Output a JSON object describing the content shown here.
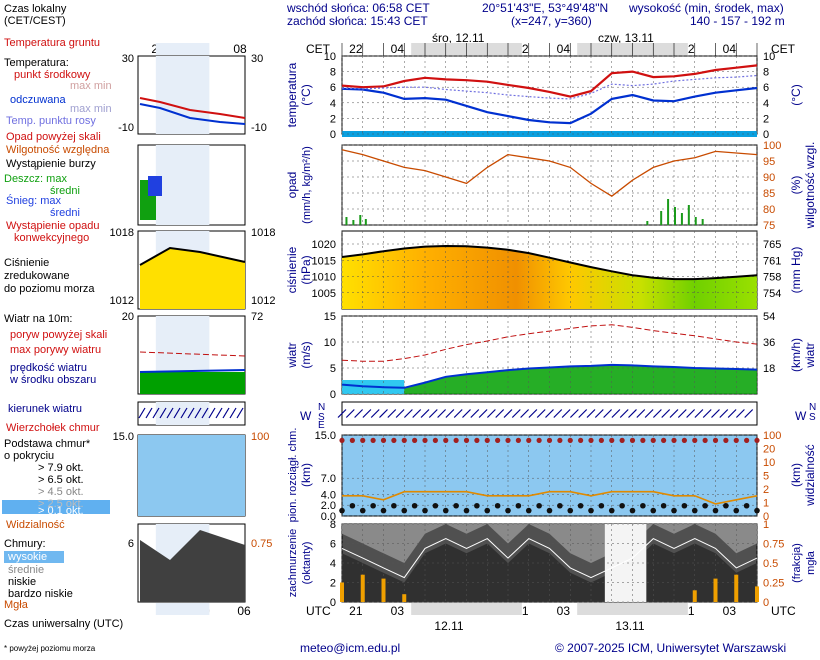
{
  "header": {
    "sunrise": "wschód słońca: 06:58 CET",
    "sunset": "zachód słońca: 15:43 CET",
    "coords": "20°51'43\"E, 53°49'48\"N",
    "grid": "(x=247, y=360)",
    "height_label": "wysokość (min, środek, max)",
    "height_values": "140 - 157 - 192 m"
  },
  "legend": {
    "local_time": "Czas lokalny",
    "local_time_sub": "(CET/CEST)",
    "ground_temp": "Temperatura gruntu",
    "temperature": "Temperatura:",
    "mid_point": "punkt środkowy",
    "max_min_1": "max min",
    "feels_like": "odczuwana",
    "max_min_2": "max min",
    "dew_point": "Temp. punktu rosy",
    "precip_above": "Opad powyżej skali",
    "humidity": "Wilgotność względna",
    "storm": "Wystąpienie burzy",
    "rain_max": "Deszcz: max",
    "rain_mid": "średni",
    "snow_max": "Śnieg: max",
    "snow_mid": "średni",
    "conv": "Wystąpienie opadu konwekcyjnego",
    "pressure": "Ciśnienie zredukowane do poziomu morza",
    "wind_10": "Wiatr na 10m:",
    "gust_above": "poryw powyżej skali",
    "max_gust": "max porywy wiatru",
    "wind_speed": "prędkość wiatru w środku obszaru",
    "wind_dir": "kierunek wiatru",
    "cloud_top": "Wierzchołek chmur",
    "cloud_base": "Podstawa chmur* o pokryciu",
    "okt_79": "> 7.9 okt.",
    "okt_65": "> 6.5 okt.",
    "okt_45": "> 4.5 okt.",
    "okt_25": "> 2.5 okt.",
    "okt_01": "> 0.1 okt.",
    "visibility": "Widzialność",
    "clouds": "Chmury:",
    "high": "wysokie",
    "mid": "średnie",
    "low": "niskie",
    "very_low": "bardzo niskie",
    "fog": "Mgła",
    "utc": "Czas uniwersalny (UTC)",
    "footnote": "* powyżej poziomu morza"
  },
  "dates": {
    "wed": "śro, 12.11",
    "thu": "czw, 13.11",
    "d12": "12.11",
    "d13": "13.11"
  },
  "cet_label": "CET",
  "utc_label": "UTC",
  "top_hours": [
    "22",
    "04",
    "10",
    "16",
    "22",
    "04",
    "10",
    "16",
    "22",
    "04"
  ],
  "bottom_hours": [
    "21",
    "03",
    "09",
    "15",
    "21",
    "03",
    "09",
    "15",
    "21",
    "03"
  ],
  "legend_top_hours": [
    "20",
    "02",
    "08"
  ],
  "legend_bottom_hours": [
    "18",
    "00",
    "06"
  ],
  "footer": {
    "email": "meteo@icm.edu.pl",
    "copyright": "© 2007-2025 ICM, Uniwersytet Warszawski"
  },
  "colors": {
    "red": "#d01010",
    "blue": "#0030d0",
    "orange": "#c84b00",
    "navy": "#00008b"
  },
  "chart_data": [
    {
      "type": "line",
      "name": "temperature",
      "ylabel": "temperatura (°C)",
      "ylim": [
        0,
        10
      ],
      "yticks": [
        0,
        2,
        4,
        6,
        8,
        10
      ],
      "x_hours": [
        0,
        3,
        6,
        9,
        12,
        15,
        18,
        21,
        24,
        27,
        30,
        33,
        36,
        39,
        42,
        45,
        48,
        51,
        54,
        57,
        60
      ],
      "series": [
        {
          "name": "temperature",
          "color": "#d01010",
          "values": [
            6.2,
            6.0,
            6.1,
            6.8,
            7.2,
            7.0,
            6.9,
            6.7,
            6.3,
            5.9,
            5.4,
            4.8,
            5.5,
            7.8,
            8.0,
            7.3,
            7.4,
            7.7,
            8.2,
            8.5,
            8.8
          ]
        },
        {
          "name": "feels_like",
          "color": "#0030d0",
          "values": [
            5.8,
            5.7,
            5.3,
            4.5,
            4.6,
            4.4,
            3.6,
            2.8,
            2.3,
            1.8,
            1.5,
            1.4,
            2.6,
            4.5,
            5.0,
            4.3,
            4.2,
            4.8,
            5.3,
            5.6,
            5.9
          ]
        },
        {
          "name": "dew_point",
          "color": "#7070e0",
          "values": [
            5.9,
            5.8,
            5.9,
            6.0,
            6.0,
            5.7,
            5.5,
            5.3,
            5.0,
            4.8,
            4.6,
            4.5,
            5.2,
            6.4,
            6.2,
            6.4,
            6.8,
            7.0,
            7.2,
            7.3,
            7.5
          ]
        }
      ]
    },
    {
      "type": "bar",
      "name": "precipitation",
      "ylabel": "opad (mm/h, kg/m²/h)",
      "humidity_ylabel": "wilgotność wzgl. (%)",
      "humidity_ylim": [
        75,
        100
      ],
      "humidity_yticks": [
        75,
        80,
        85,
        90,
        95,
        100
      ],
      "x_hours": [
        0,
        3,
        6,
        9,
        12,
        15,
        18,
        21,
        24,
        27,
        30,
        33,
        36,
        39,
        42,
        45,
        48,
        51,
        54,
        57,
        60
      ],
      "humidity": [
        98.5,
        97,
        95,
        93,
        92,
        90,
        88,
        93,
        97,
        96,
        95,
        93,
        88,
        84,
        89,
        93,
        95,
        96,
        98,
        97.5,
        97
      ]
    },
    {
      "type": "area",
      "name": "pressure",
      "ylabel": "ciśnienie (hPa)",
      "ylabel2": "(mm Hg)",
      "ylim": [
        1000,
        1024
      ],
      "yticks": [
        1005,
        1010,
        1015,
        1020
      ],
      "yticks2": [
        754,
        758,
        761,
        765
      ],
      "x_hours": [
        0,
        3,
        6,
        9,
        12,
        15,
        18,
        21,
        24,
        27,
        30,
        33,
        36,
        39,
        42,
        45,
        48,
        51,
        54,
        57,
        60
      ],
      "values": [
        1016,
        1016.8,
        1017.8,
        1018.6,
        1019.2,
        1019.4,
        1019.3,
        1018.9,
        1018.2,
        1017.2,
        1015.8,
        1014.3,
        1012.9,
        1011.6,
        1010.4,
        1009.6,
        1009.2,
        1009.2,
        1009.5,
        1009.9,
        1010.4
      ]
    },
    {
      "type": "line",
      "name": "wind",
      "ylabel": "wiatr (m/s)",
      "ylabel2": "(km/h)",
      "ylim": [
        0,
        15
      ],
      "yticks": [
        0,
        5,
        10,
        15
      ],
      "yticks2": [
        18,
        36,
        54
      ],
      "x_hours": [
        0,
        3,
        6,
        9,
        12,
        15,
        18,
        21,
        24,
        27,
        30,
        33,
        36,
        39,
        42,
        45,
        48,
        51,
        54,
        57,
        60
      ],
      "series": [
        {
          "name": "max_gust",
          "color": "#c01010",
          "values": [
            6.5,
            6.3,
            6.3,
            6.8,
            7.5,
            8.6,
            9.5,
            10.2,
            11,
            11.6,
            12.1,
            12.6,
            13.1,
            13.3,
            12.8,
            12.2,
            11.7,
            11.2,
            10.6,
            10.0,
            9.6
          ]
        },
        {
          "name": "wind_speed",
          "color": "#0030d0",
          "values": [
            1.8,
            1.5,
            1.3,
            1.2,
            2.2,
            3.3,
            3.8,
            4.2,
            4.6,
            4.9,
            5.1,
            5.3,
            5.4,
            5.6,
            5.5,
            5.3,
            5.2,
            5.0,
            4.9,
            4.8,
            4.7
          ]
        }
      ]
    },
    {
      "type": "line",
      "name": "cloud_base",
      "ylabel": "pion. rozciągł. chm. (km)",
      "ylabel2": "widzialność (km)",
      "ylim": [
        0,
        15
      ],
      "yticks": [
        0,
        2.0,
        4.0,
        7.0,
        15.0
      ],
      "yticks2": [
        0,
        1,
        2,
        5,
        10,
        20,
        100
      ],
      "x_hours": [
        0,
        3,
        6,
        9,
        12,
        15,
        18,
        21,
        24,
        27,
        30,
        33,
        36,
        39,
        42,
        45,
        48,
        51,
        54,
        57,
        60
      ],
      "visibility_km": [
        5,
        5,
        4,
        6,
        6,
        6,
        6,
        5,
        5,
        5,
        6,
        6,
        5,
        6,
        6,
        6,
        5,
        5,
        3,
        4,
        5
      ]
    },
    {
      "type": "area",
      "name": "cloud_cover",
      "ylabel": "zachmurzenie (oktanty)",
      "ylabel2": "(frakcja) mgła",
      "ylim": [
        0,
        8
      ],
      "yticks": [
        0,
        2,
        4,
        6,
        8
      ],
      "yticks2": [
        "0",
        "0.25",
        "0.5",
        "0.75",
        "1"
      ],
      "x_hours": [
        0,
        3,
        6,
        9,
        12,
        15,
        18,
        21,
        24,
        27,
        30,
        33,
        36,
        39,
        42,
        45,
        48,
        51,
        54,
        57,
        60
      ],
      "low_okt": [
        5,
        4,
        3,
        2,
        5,
        6,
        5,
        6,
        4,
        6,
        5,
        3,
        2,
        3,
        4,
        6,
        5,
        6,
        5,
        3,
        4
      ],
      "fog_fraction": [
        0.25,
        0.35,
        0.3,
        0.1,
        0,
        0,
        0,
        0,
        0,
        0,
        0,
        0,
        0,
        0,
        0,
        0,
        0,
        0.15,
        0.3,
        0.35,
        0.2
      ]
    }
  ]
}
